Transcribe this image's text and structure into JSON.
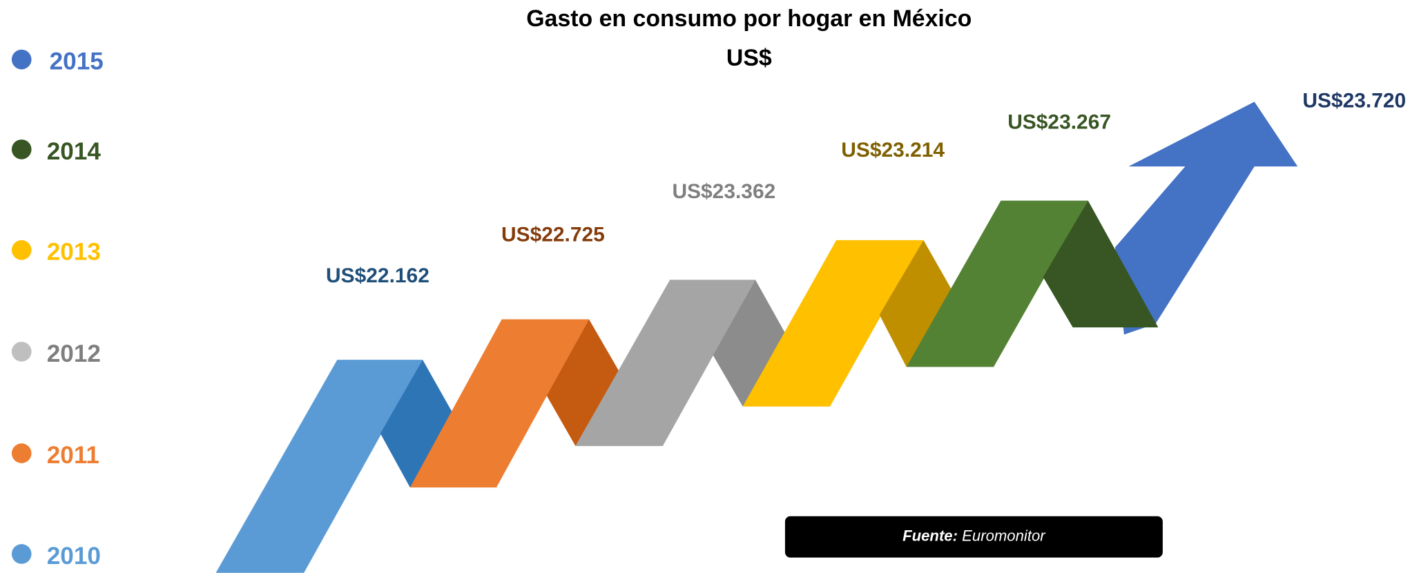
{
  "chart_data": {
    "type": "ribbon",
    "title": "Gasto en consumo por hogar en México",
    "subtitle": "US$",
    "categories": [
      "2010",
      "2011",
      "2012",
      "2013",
      "2014",
      "2015"
    ],
    "values": [
      22162,
      22725,
      23362,
      23214,
      23267,
      23720
    ],
    "value_labels": [
      "US$22.162",
      "US$22.725",
      "US$23.362",
      "US$23.214",
      "US$23.267",
      "US$23.720"
    ],
    "colors": [
      "#5b9bd5",
      "#ed7d31",
      "#a5a5a5",
      "#ffc000",
      "#548235",
      "#4472c4"
    ],
    "fold_colors": [
      "#2e75b6",
      "#c55a11",
      "#8c8c8c",
      "#bf8f00",
      "#375623"
    ],
    "label_colors": [
      "#1f4e79",
      "#843c0c",
      "#7f7f7f",
      "#7f6000",
      "#375623",
      "#1f3864"
    ],
    "legend_colors": [
      "#5b9bd5",
      "#ed7d31",
      "#bfbfbf",
      "#ffc000",
      "#375623",
      "#4472c4"
    ],
    "legend_text_colors": [
      "#5b9bd5",
      "#ed7d31",
      "#7f7f7f",
      "#ffc000",
      "#375623",
      "#4472c4"
    ],
    "source_label": "Fuente:",
    "source": "Euromonitor"
  }
}
